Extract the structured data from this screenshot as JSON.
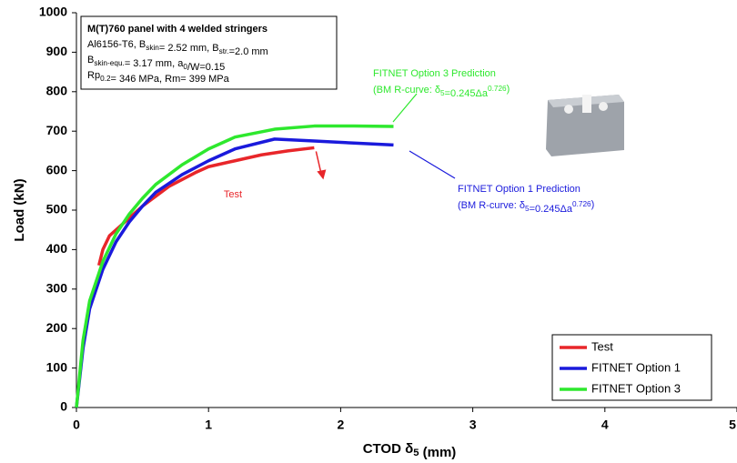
{
  "chart_data": {
    "type": "line",
    "xlabel": [
      "CTOD ",
      {
        "text": "δ"
      },
      {
        "sub": "5"
      },
      " (mm)"
    ],
    "ylabel": "Load (kN)",
    "xlim": [
      0,
      5
    ],
    "ylim": [
      0,
      1000
    ],
    "xticks": [
      0,
      1,
      2,
      3,
      4,
      5
    ],
    "yticks": [
      0,
      100,
      200,
      300,
      400,
      500,
      600,
      700,
      800,
      900,
      1000
    ],
    "grid": false,
    "legend": "lower right",
    "info_box": [
      [
        "M(T)760 panel with 4 welded stringers"
      ],
      [
        "Al6156-T6, B",
        {
          "sub": "skin"
        },
        "= 2.52 mm, B",
        {
          "sub": "str."
        },
        "=2.0 mm"
      ],
      [
        "B",
        {
          "sub": "skin-equ."
        },
        "= 3.17 mm, a",
        {
          "sub": "0"
        },
        "/W=0.15"
      ],
      [
        "Rp",
        {
          "sub": "0.2"
        },
        "= 346 MPa, Rm= 399 MPa"
      ]
    ],
    "annotations": [
      {
        "color": "#2ee82e",
        "lines": [
          [
            "FITNET Option 3 Prediction"
          ],
          [
            "(BM R-curve: δ",
            {
              "sub": "5"
            },
            "=0.245Δa",
            {
              "sup": "0.726"
            },
            ")"
          ]
        ]
      },
      {
        "color": "#1a1adc",
        "lines": [
          [
            "FITNET Option 1 Prediction"
          ],
          [
            "(BM R-curve: δ",
            {
              "sub": "5"
            },
            "=0.245Δa",
            {
              "sup": "0.726"
            },
            ")"
          ]
        ]
      },
      {
        "color": "#e8262a",
        "lines": [
          [
            "Test"
          ]
        ]
      }
    ],
    "series": [
      {
        "name": "Test",
        "color": "#e8262a",
        "x": [
          0.17,
          0.2,
          0.25,
          0.35,
          0.5,
          0.7,
          0.9,
          1.0,
          1.2,
          1.4,
          1.6,
          1.8
        ],
        "values": [
          360,
          400,
          435,
          465,
          510,
          560,
          595,
          610,
          625,
          640,
          650,
          658
        ]
      },
      {
        "name": "FITNET Option 1",
        "color": "#1a1adc",
        "x": [
          0,
          0.05,
          0.1,
          0.2,
          0.3,
          0.4,
          0.5,
          0.6,
          0.8,
          1.0,
          1.2,
          1.5,
          1.8,
          2.1,
          2.4
        ],
        "values": [
          0,
          150,
          250,
          350,
          420,
          470,
          510,
          545,
          590,
          625,
          655,
          680,
          675,
          670,
          665
        ]
      },
      {
        "name": "FITNET Option 3",
        "color": "#2ee82e",
        "x": [
          0,
          0.05,
          0.1,
          0.2,
          0.3,
          0.4,
          0.5,
          0.6,
          0.8,
          1.0,
          1.2,
          1.5,
          1.8,
          2.1,
          2.4
        ],
        "values": [
          0,
          170,
          270,
          370,
          440,
          490,
          530,
          565,
          615,
          655,
          685,
          705,
          713,
          713,
          712
        ]
      }
    ]
  }
}
